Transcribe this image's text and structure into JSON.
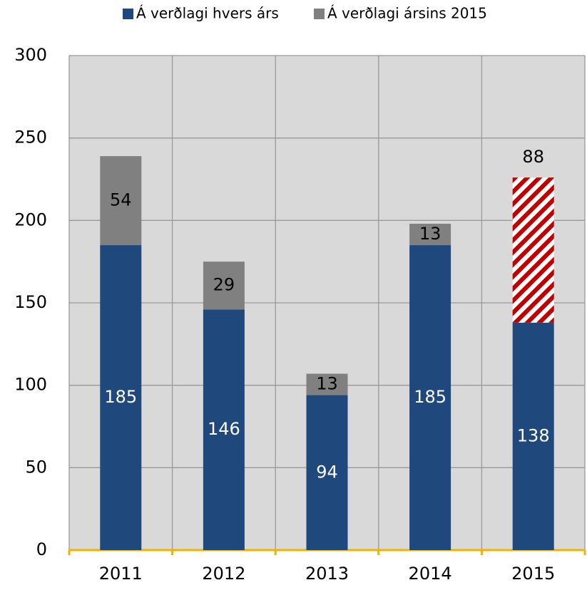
{
  "chart_data": {
    "type": "stacked_bar",
    "categories": [
      "2011",
      "2012",
      "2013",
      "2014",
      "2015"
    ],
    "series": [
      {
        "name": "Á verðlagi hvers árs",
        "color": "#1f497d",
        "label_color": "#ffffff",
        "values": [
          185,
          146,
          94,
          185,
          138
        ]
      },
      {
        "name": "Á verðlagi ársins 2015",
        "color": "#808080",
        "label_color": "#000000",
        "values": [
          54,
          29,
          13,
          13,
          88
        ],
        "pattern": {
          "indices": [
            4
          ],
          "color": "#c00000"
        }
      }
    ],
    "ylim": [
      0,
      300
    ],
    "yticks": [
      0,
      50,
      100,
      150,
      200,
      250,
      300
    ],
    "grid": true,
    "legend": "top",
    "plot_background": "#d9d9d9",
    "axis_color": "#f0b400"
  }
}
